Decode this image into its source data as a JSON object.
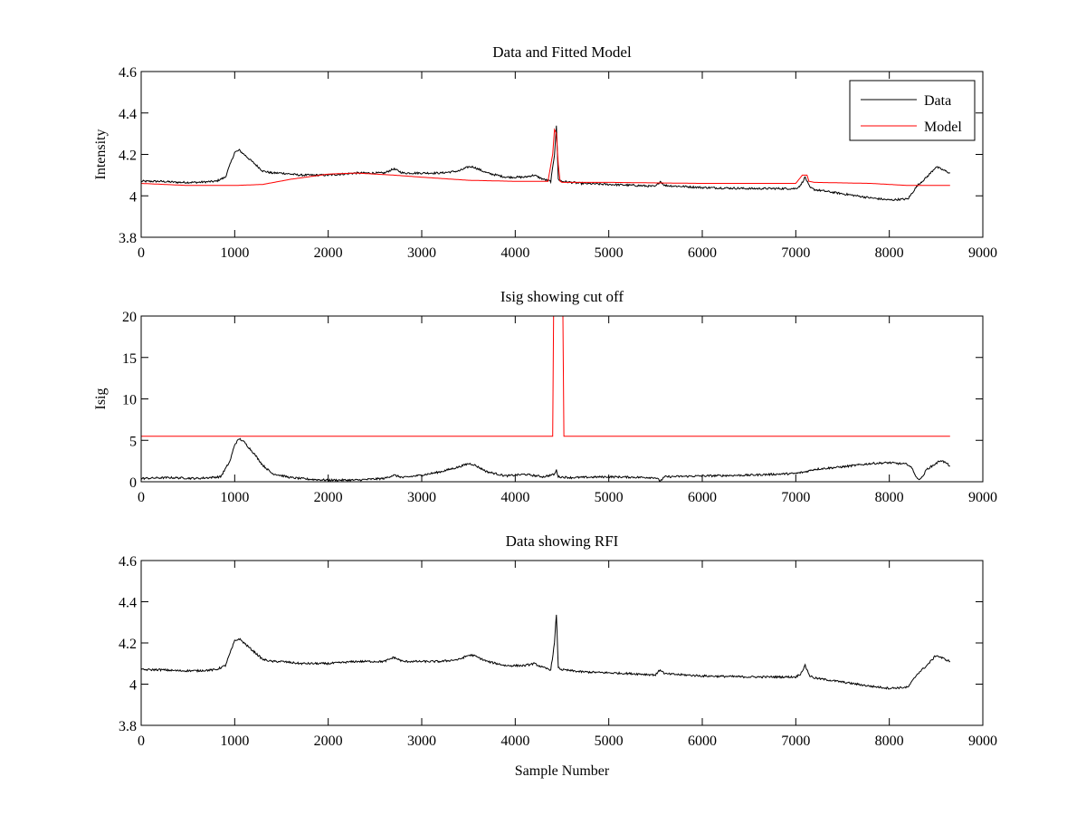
{
  "figure": {
    "background": "#ffffff",
    "colors": {
      "data": "#000000",
      "model": "#ff0000"
    }
  },
  "chart_data": [
    {
      "type": "line",
      "title": "Data and Fitted Model",
      "xlabel": "",
      "ylabel": "Intensity",
      "xlim": [
        0,
        9000
      ],
      "ylim": [
        3.8,
        4.6
      ],
      "xticks": [
        "0",
        "1000",
        "2000",
        "3000",
        "4000",
        "5000",
        "6000",
        "7000",
        "8000",
        "9000"
      ],
      "yticks": [
        "3.8",
        "4",
        "4.2",
        "4.4",
        "4.6"
      ],
      "legend": {
        "placement": "top-right",
        "entries": [
          "Data",
          "Model"
        ]
      },
      "grid": false,
      "series": [
        {
          "name": "Data",
          "color": "#000000",
          "x": [
            0,
            200,
            400,
            600,
            800,
            900,
            950,
            1000,
            1050,
            1100,
            1200,
            1300,
            1400,
            1500,
            1700,
            2000,
            2300,
            2500,
            2600,
            2700,
            2800,
            3000,
            3200,
            3400,
            3500,
            3550,
            3700,
            3900,
            4100,
            4200,
            4300,
            4380,
            4420,
            4440,
            4460,
            4500,
            4700,
            5000,
            5300,
            5500,
            5550,
            5600,
            5800,
            6000,
            6500,
            7000,
            7050,
            7100,
            7150,
            7200,
            7500,
            7800,
            8000,
            8200,
            8300,
            8400,
            8500,
            8600,
            8650
          ],
          "y": [
            4.07,
            4.07,
            4.065,
            4.065,
            4.07,
            4.09,
            4.15,
            4.21,
            4.22,
            4.2,
            4.16,
            4.12,
            4.11,
            4.11,
            4.1,
            4.1,
            4.11,
            4.11,
            4.11,
            4.13,
            4.11,
            4.11,
            4.11,
            4.12,
            4.14,
            4.14,
            4.11,
            4.09,
            4.09,
            4.1,
            4.08,
            4.07,
            4.2,
            4.34,
            4.08,
            4.07,
            4.06,
            4.055,
            4.05,
            4.045,
            4.07,
            4.05,
            4.045,
            4.04,
            4.035,
            4.035,
            4.05,
            4.09,
            4.04,
            4.03,
            4.01,
            3.99,
            3.98,
            3.985,
            4.05,
            4.09,
            4.14,
            4.12,
            4.11
          ]
        },
        {
          "name": "Model",
          "color": "#ff0000",
          "x": [
            0,
            500,
            1000,
            1300,
            1600,
            2000,
            2300,
            2700,
            3000,
            3500,
            4000,
            4350,
            4400,
            4420,
            4440,
            4460,
            4480,
            4500,
            5000,
            6000,
            6500,
            7000,
            7070,
            7090,
            7120,
            7140,
            7200,
            7800,
            8200,
            8650
          ],
          "y": [
            4.06,
            4.05,
            4.05,
            4.055,
            4.08,
            4.105,
            4.11,
            4.1,
            4.09,
            4.075,
            4.07,
            4.07,
            4.2,
            4.32,
            4.3,
            4.15,
            4.07,
            4.065,
            4.065,
            4.06,
            4.06,
            4.06,
            4.1,
            4.1,
            4.1,
            4.07,
            4.065,
            4.06,
            4.05,
            4.05
          ]
        }
      ]
    },
    {
      "type": "line",
      "title": "Isig showing cut off",
      "xlabel": "",
      "ylabel": "Isig",
      "xlim": [
        0,
        9000
      ],
      "ylim": [
        0,
        20
      ],
      "xticks": [
        "0",
        "1000",
        "2000",
        "3000",
        "4000",
        "5000",
        "6000",
        "7000",
        "8000",
        "9000"
      ],
      "yticks": [
        "0",
        "5",
        "10",
        "15",
        "20"
      ],
      "grid": false,
      "series": [
        {
          "color": "#000000",
          "x": [
            0,
            300,
            600,
            850,
            950,
            1000,
            1050,
            1100,
            1200,
            1300,
            1400,
            1600,
            1800,
            2000,
            2300,
            2600,
            2700,
            2800,
            3000,
            3200,
            3400,
            3500,
            3550,
            3700,
            3900,
            4100,
            4300,
            4420,
            4440,
            4460,
            4600,
            5000,
            5500,
            5550,
            5600,
            6000,
            6500,
            7000,
            7100,
            7200,
            7500,
            7800,
            8000,
            8200,
            8250,
            8300,
            8350,
            8400,
            8500,
            8550,
            8600,
            8650
          ],
          "y": [
            0.4,
            0.5,
            0.4,
            0.6,
            2.5,
            4.5,
            5.2,
            4.8,
            3.5,
            2.0,
            1.0,
            0.5,
            0.3,
            0.2,
            0.2,
            0.4,
            0.8,
            0.5,
            0.8,
            1.2,
            1.8,
            2.2,
            2.1,
            1.2,
            0.7,
            0.9,
            0.6,
            0.9,
            1.4,
            0.6,
            0.5,
            0.6,
            0.5,
            0.1,
            0.6,
            0.7,
            0.8,
            1.0,
            1.2,
            1.5,
            1.8,
            2.2,
            2.3,
            2.1,
            1.5,
            0.3,
            0.5,
            1.5,
            2.2,
            2.6,
            2.3,
            1.9
          ]
        },
        {
          "color": "#ff0000",
          "x": [
            0,
            4400,
            4410,
            4510,
            4520,
            8650
          ],
          "y": [
            5.5,
            5.5,
            20,
            20,
            5.5,
            5.5
          ]
        }
      ]
    },
    {
      "type": "line",
      "title": "Data showing RFI",
      "xlabel": "Sample Number",
      "ylabel": "",
      "xlim": [
        0,
        9000
      ],
      "ylim": [
        3.8,
        4.6
      ],
      "xticks": [
        "0",
        "1000",
        "2000",
        "3000",
        "4000",
        "5000",
        "6000",
        "7000",
        "8000",
        "9000"
      ],
      "yticks": [
        "3.8",
        "4",
        "4.2",
        "4.4",
        "4.6"
      ],
      "grid": false,
      "series": [
        {
          "color": "#000000",
          "x": [
            0,
            200,
            400,
            600,
            800,
            900,
            950,
            1000,
            1050,
            1100,
            1200,
            1300,
            1400,
            1500,
            1700,
            2000,
            2300,
            2500,
            2600,
            2700,
            2800,
            3000,
            3200,
            3400,
            3500,
            3550,
            3700,
            3900,
            4100,
            4200,
            4300,
            4380,
            4420,
            4440,
            4460,
            4500,
            4700,
            5000,
            5300,
            5500,
            5550,
            5600,
            5800,
            6000,
            6500,
            7000,
            7050,
            7100,
            7150,
            7200,
            7500,
            7800,
            8000,
            8200,
            8300,
            8400,
            8500,
            8600,
            8650
          ],
          "y": [
            4.07,
            4.07,
            4.065,
            4.065,
            4.07,
            4.09,
            4.15,
            4.21,
            4.22,
            4.2,
            4.16,
            4.12,
            4.11,
            4.11,
            4.1,
            4.1,
            4.11,
            4.11,
            4.11,
            4.13,
            4.11,
            4.11,
            4.11,
            4.12,
            4.14,
            4.14,
            4.11,
            4.09,
            4.09,
            4.1,
            4.08,
            4.07,
            4.2,
            4.34,
            4.08,
            4.07,
            4.06,
            4.055,
            4.05,
            4.045,
            4.07,
            4.05,
            4.045,
            4.04,
            4.035,
            4.035,
            4.05,
            4.09,
            4.04,
            4.03,
            4.01,
            3.99,
            3.98,
            3.985,
            4.05,
            4.09,
            4.14,
            4.12,
            4.11
          ]
        }
      ]
    }
  ]
}
